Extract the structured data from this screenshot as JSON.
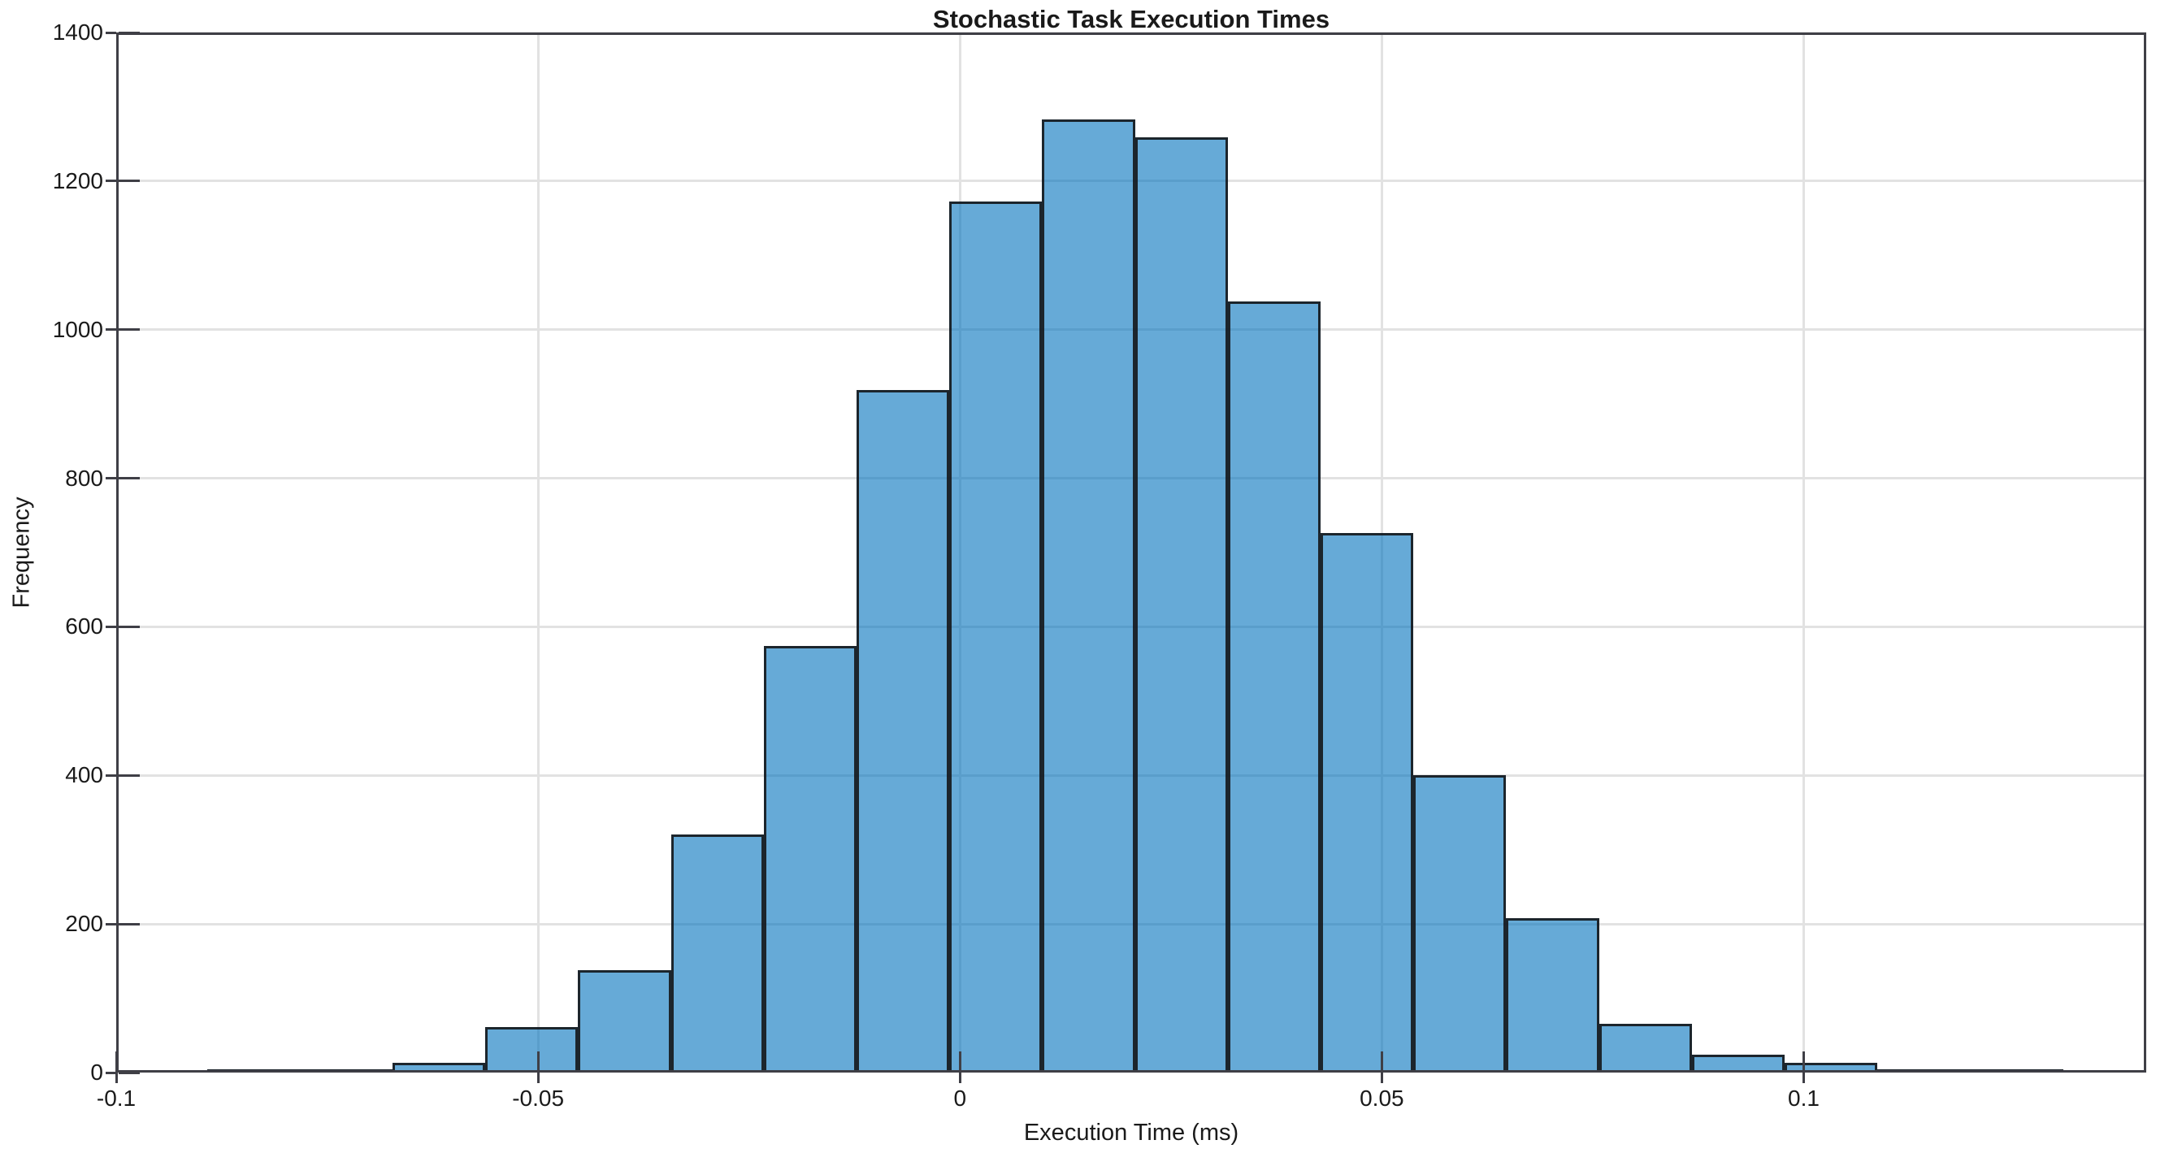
{
  "chart_data": {
    "type": "bar",
    "subtype": "histogram",
    "title": "Stochastic Task Execution Times",
    "xlabel": "Execution Time (ms)",
    "ylabel": "Frequency",
    "bin_edges": [
      -0.08925,
      -0.07825,
      -0.06725,
      -0.05625,
      -0.04525,
      -0.03425,
      -0.02325,
      -0.01225,
      -0.00125,
      0.00975,
      0.02075,
      0.03175,
      0.04275,
      0.05375,
      0.06475,
      0.07575,
      0.08675,
      0.09775,
      0.10875,
      0.11975,
      0.13075
    ],
    "counts": [
      2,
      4,
      13,
      61,
      138,
      320,
      574,
      919,
      1172,
      1283,
      1259,
      1038,
      726,
      400,
      208,
      66,
      24,
      13,
      3,
      2
    ],
    "xlim": [
      -0.1,
      0.1406
    ],
    "ylim": [
      0,
      1400
    ],
    "xtick_values": [
      -0.1,
      -0.05,
      0,
      0.05,
      0.1
    ],
    "xtick_labels": [
      "-0.1",
      "-0.05",
      "0",
      "0.05",
      "0.1"
    ],
    "ytick_values": [
      0,
      200,
      400,
      600,
      800,
      1000,
      1200,
      1400
    ],
    "ytick_labels": [
      "0",
      "200",
      "400",
      "600",
      "800",
      "1000",
      "1200",
      "1400"
    ],
    "grid": true,
    "legend_visible": false,
    "colors": {
      "bar_face": "#0072BD",
      "bar_face_alpha": 0.6,
      "bar_edge": "#121214",
      "grid_line": "#E2E2E2",
      "axis_line": "#3F3F46",
      "text": "#1A1A1A",
      "background": "#FFFFFF"
    }
  }
}
